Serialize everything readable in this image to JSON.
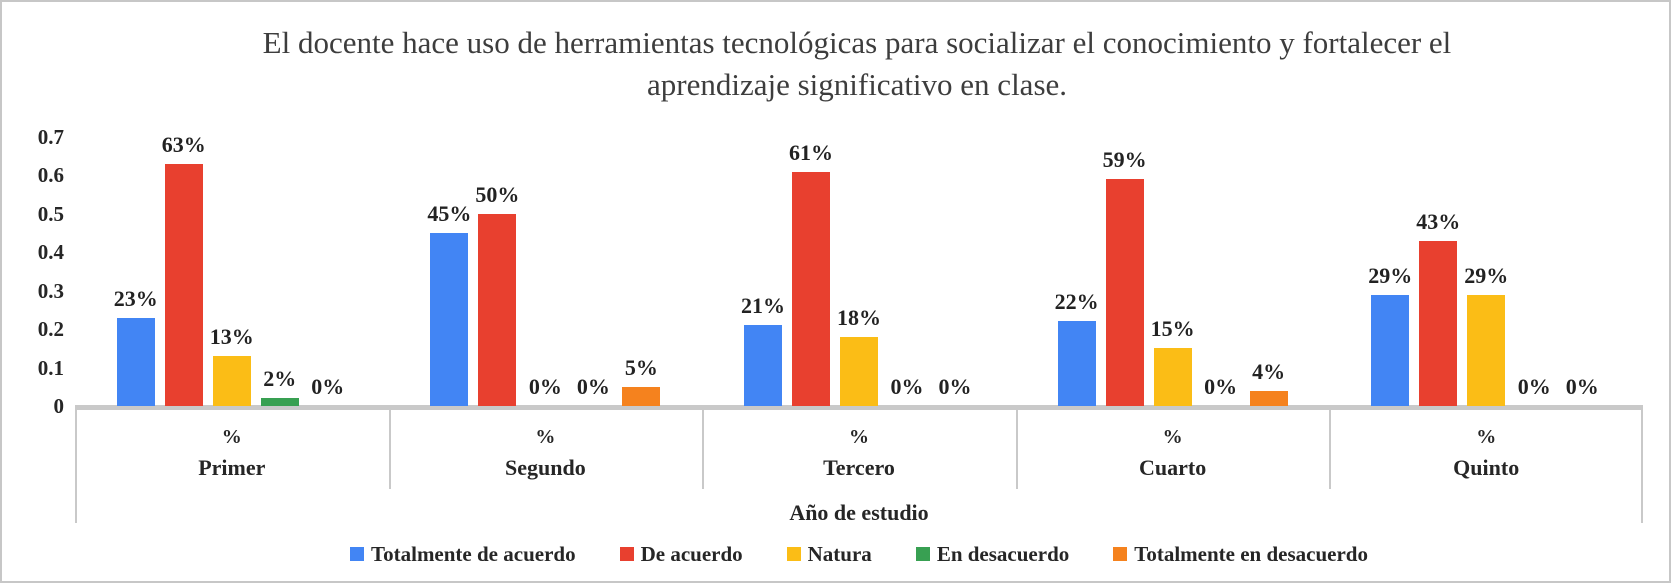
{
  "chart_data": {
    "type": "bar",
    "title": "El docente hace uso de herramientas tecnológicas para socializar el conocimiento y fortalecer el aprendizaje significativo en clase.",
    "xlabel": "Año de estudio",
    "group_sub_label": "%",
    "categories": [
      "Primer",
      "Segundo",
      "Tercero",
      "Cuarto",
      "Quinto"
    ],
    "series": [
      {
        "name": "Totalmente de acuerdo",
        "color": "#4285F4",
        "values": [
          0.23,
          0.45,
          0.21,
          0.22,
          0.29
        ],
        "labels": [
          "23%",
          "45%",
          "21%",
          "22%",
          "29%"
        ]
      },
      {
        "name": "De acuerdo",
        "color": "#E8402F",
        "values": [
          0.63,
          0.5,
          0.61,
          0.59,
          0.43
        ],
        "labels": [
          "63%",
          "50%",
          "61%",
          "59%",
          "43%"
        ]
      },
      {
        "name": "Natura",
        "color": "#FBBD16",
        "values": [
          0.13,
          0.0,
          0.18,
          0.15,
          0.29
        ],
        "labels": [
          "13%",
          "0%",
          "18%",
          "15%",
          "29%"
        ]
      },
      {
        "name": "En desacuerdo",
        "color": "#38A052",
        "values": [
          0.02,
          0.0,
          0.0,
          0.0,
          0.0
        ],
        "labels": [
          "2%",
          "0%",
          "0%",
          "0%",
          "0%"
        ]
      },
      {
        "name": "Totalmente en desacuerdo",
        "color": "#F5821E",
        "values": [
          0.0,
          0.05,
          0.0,
          0.04,
          0.0
        ],
        "labels": [
          "0%",
          "5%",
          "0%",
          "4%",
          "0%"
        ]
      }
    ],
    "ylim": [
      0,
      0.7
    ],
    "y_ticks": [
      "0",
      "0.1",
      "0.2",
      "0.3",
      "0.4",
      "0.5",
      "0.6",
      "0.7"
    ],
    "grid": false,
    "legend_position": "bottom",
    "axis_color": "#C9C9C9",
    "label_color": "#222222",
    "title_color": "#3D3D3D"
  }
}
